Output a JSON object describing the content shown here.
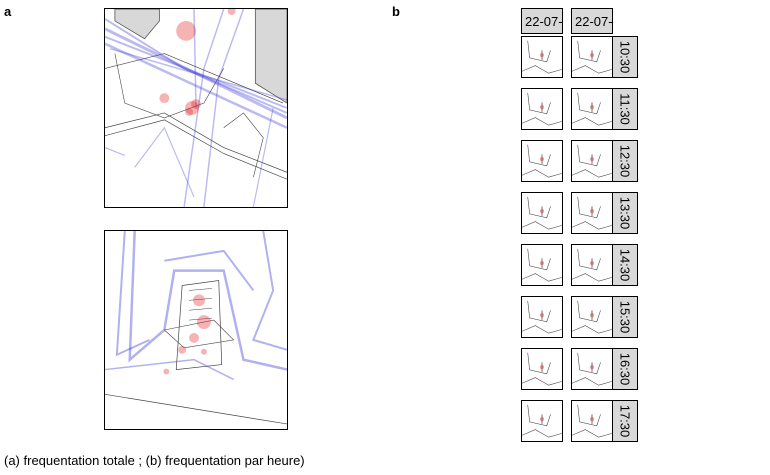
{
  "panel_a_label": "a",
  "panel_b_label": "b",
  "column_headers": [
    "22-07-",
    "22-07-"
  ],
  "rows": [
    {
      "time": "10:30"
    },
    {
      "time": "11:30"
    },
    {
      "time": "12:30"
    },
    {
      "time": "13:30"
    },
    {
      "time": "14:30"
    },
    {
      "time": "15:30"
    },
    {
      "time": "16:30"
    },
    {
      "time": "17:30"
    }
  ],
  "caption": "(a) frequentation totale ; (b) frequentation par heure)",
  "colors": {
    "trajectory": "#3b3bd6",
    "presence": "#e32626",
    "building": "#d8d8d8",
    "header_bg": "#d9d9d9"
  }
}
